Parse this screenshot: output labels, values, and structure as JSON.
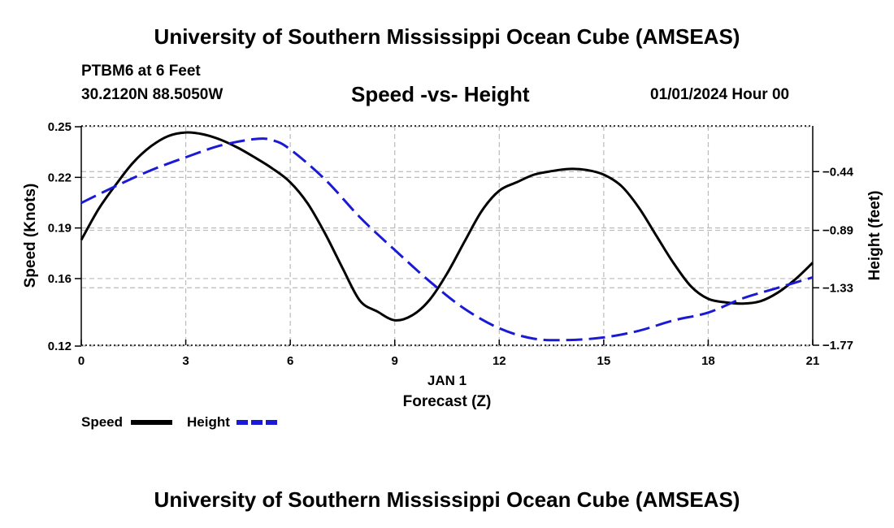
{
  "header": {
    "title": "University of Southern Mississippi Ocean Cube (AMSEAS)",
    "station": "PTBM6 at 6 Feet",
    "coords": "30.2120N  88.5050W",
    "datetime": "01/01/2024 Hour 00"
  },
  "footer": {
    "title": "University of Southern Mississippi Ocean Cube (AMSEAS)"
  },
  "colors": {
    "speed": "#000000",
    "height": "#1a1ad6",
    "grid": "#bbbbbb"
  },
  "chart_data": {
    "type": "line",
    "title": "Speed -vs- Height",
    "xlabel": "Forecast (Z)",
    "xsublabel": "JAN 1",
    "ylabel_left": "Speed (Knots)",
    "ylabel_right": "Height (feet)",
    "xlim": [
      0,
      21
    ],
    "xticks": [
      0,
      3,
      6,
      9,
      12,
      15,
      18,
      21
    ],
    "ylim_left": [
      0.1205,
      0.2505
    ],
    "yticks_left": [
      0.25,
      0.22,
      0.19,
      0.16,
      0.12
    ],
    "ytick_labels_left": [
      "0.25",
      "0.22",
      "0.19",
      "0.16",
      "0.12"
    ],
    "ylim_right": [
      -1.77,
      -0.09
    ],
    "yticks_right": [
      -0.44,
      -0.89,
      -1.33,
      -1.77
    ],
    "ytick_labels_right": [
      "-0.44",
      "-0.89",
      "-1.33",
      "-1.77"
    ],
    "series": [
      {
        "name": "Speed",
        "axis": "left",
        "style": "solid",
        "x": [
          0,
          0.5,
          1,
          1.5,
          2,
          2.5,
          3,
          3.5,
          4,
          4.5,
          5,
          5.5,
          6,
          6.5,
          7,
          7.5,
          8,
          8.5,
          9,
          9.5,
          10,
          10.5,
          11,
          11.5,
          12,
          12.5,
          13,
          13.5,
          14,
          14.5,
          15,
          15.5,
          16,
          16.5,
          17,
          17.5,
          18,
          18.5,
          19,
          19.5,
          20,
          20.5,
          21
        ],
        "values": [
          0.1829,
          0.2013,
          0.2159,
          0.229,
          0.2384,
          0.2445,
          0.2466,
          0.2455,
          0.2423,
          0.2375,
          0.2316,
          0.2251,
          0.2171,
          0.2045,
          0.1867,
          0.1663,
          0.1469,
          0.1405,
          0.1353,
          0.1382,
          0.1474,
          0.1629,
          0.1818,
          0.2002,
          0.2121,
          0.2171,
          0.2216,
          0.2237,
          0.225,
          0.2244,
          0.2216,
          0.215,
          0.2023,
          0.1858,
          0.1693,
          0.1555,
          0.148,
          0.1459,
          0.1452,
          0.1466,
          0.1517,
          0.1596,
          0.1694
        ]
      },
      {
        "name": "Height",
        "axis": "right",
        "style": "dashed",
        "x": [
          0,
          1,
          2,
          3,
          4,
          5,
          5.5,
          6,
          7,
          8,
          9,
          10,
          11,
          12,
          13,
          14,
          15,
          16,
          17,
          18,
          19,
          20,
          21
        ],
        "values": [
          -0.68,
          -0.55,
          -0.43,
          -0.33,
          -0.24,
          -0.19,
          -0.2,
          -0.27,
          -0.5,
          -0.79,
          -1.04,
          -1.28,
          -1.49,
          -1.64,
          -1.72,
          -1.73,
          -1.71,
          -1.66,
          -1.58,
          -1.52,
          -1.41,
          -1.33,
          -1.25
        ]
      }
    ],
    "legend": [
      {
        "label": "Speed",
        "style": "solid"
      },
      {
        "label": "Height",
        "style": "dashed"
      }
    ]
  }
}
